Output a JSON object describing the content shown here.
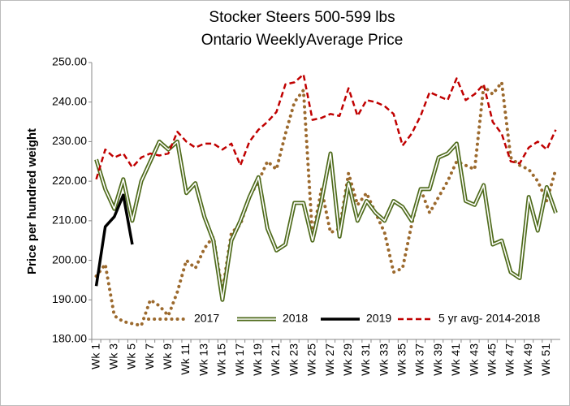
{
  "chart_data": {
    "type": "line",
    "title": [
      "Stocker Steers 500-599 lbs",
      "Ontario WeeklyAverage  Price"
    ],
    "y_label": "Price per hundred weight",
    "categories": [
      "Wk 1",
      null,
      "Wk 3",
      null,
      "Wk 5",
      null,
      "Wk 7",
      null,
      "Wk 9",
      null,
      "Wk 11",
      null,
      "Wk 13",
      null,
      "Wk 15",
      null,
      "Wk 17",
      null,
      "Wk 19",
      null,
      "Wk 21",
      null,
      "Wk 23",
      null,
      "Wk 25",
      null,
      "Wk 27",
      null,
      "Wk 29",
      null,
      "Wk 31",
      null,
      "Wk 33",
      null,
      "Wk 35",
      null,
      "Wk 37",
      null,
      "Wk 39",
      null,
      "Wk 41",
      null,
      "Wk 43",
      null,
      "Wk 45",
      null,
      "Wk 47",
      null,
      "Wk 49",
      null,
      "Wk 51",
      null
    ],
    "ylim": [
      180,
      250
    ],
    "yticks": [
      {
        "value": 180,
        "label": "180.00"
      },
      {
        "value": 190,
        "label": "190.00"
      },
      {
        "value": 200,
        "label": "200.00"
      },
      {
        "value": 210,
        "label": "210.00"
      },
      {
        "value": 220,
        "label": "220.00"
      },
      {
        "value": 230,
        "label": "230.00"
      },
      {
        "value": 240,
        "label": "240.00"
      },
      {
        "value": 250,
        "label": "250.00"
      }
    ],
    "grid": false,
    "legend": "bottom",
    "series": [
      {
        "name": "2017",
        "color": "#9c6a2e",
        "style": "dotted",
        "values": [
          196,
          199,
          186,
          184.5,
          184,
          183.5,
          190,
          188.5,
          186,
          192,
          200,
          198,
          203,
          206,
          192,
          207,
          209,
          216,
          220,
          225,
          223,
          232,
          240,
          243,
          206,
          218,
          207,
          208,
          222,
          214,
          217,
          212,
          207,
          197,
          198,
          209,
          218,
          212,
          216,
          220,
          225,
          224,
          223,
          244,
          242,
          245,
          226,
          224,
          223,
          220,
          215,
          223
        ]
      },
      {
        "name": "2018",
        "color": "#4f6b1c",
        "style": "double",
        "values": [
          225.5,
          218,
          213,
          220.5,
          210,
          220,
          225,
          230,
          228,
          230,
          217,
          219.5,
          211,
          205,
          190,
          205,
          210,
          216,
          221,
          208,
          202.5,
          204,
          214.5,
          214.5,
          205,
          215,
          227,
          206,
          219.5,
          210,
          215,
          212,
          210,
          215,
          213.5,
          210,
          218,
          218,
          226,
          227,
          229.5,
          215,
          214,
          219,
          204,
          205,
          197,
          195.5,
          216,
          207.5,
          218.5,
          212
        ]
      },
      {
        "name": "2019",
        "color": "#000000",
        "style": "solid",
        "values": [
          193.5,
          208.5,
          211,
          216.5,
          204,
          null,
          null,
          null,
          null,
          null,
          null,
          null,
          null,
          null,
          null,
          null,
          null,
          null,
          null,
          null,
          null,
          null,
          null,
          null,
          null,
          null,
          null,
          null,
          null,
          null,
          null,
          null,
          null,
          null,
          null,
          null,
          null,
          null,
          null,
          null,
          null,
          null,
          null,
          null,
          null,
          null,
          null,
          null,
          null,
          null,
          null,
          null
        ]
      },
      {
        "name": "5 yr avg- 2014-2018",
        "color": "#c00000",
        "style": "dashed",
        "values": [
          220.5,
          228,
          226,
          227,
          223.5,
          226,
          227,
          226.5,
          227,
          232.5,
          230,
          228.5,
          229.5,
          229.5,
          228,
          229.5,
          224,
          230,
          233,
          235,
          237.5,
          244.5,
          245,
          247,
          235.5,
          236,
          237,
          236.5,
          243.5,
          236.5,
          240.5,
          240,
          239,
          237,
          229,
          232,
          236.5,
          242.5,
          241.5,
          240.5,
          246,
          240.5,
          242,
          244.5,
          235,
          232,
          225,
          224.5,
          228.5,
          230,
          228,
          233
        ]
      }
    ]
  }
}
